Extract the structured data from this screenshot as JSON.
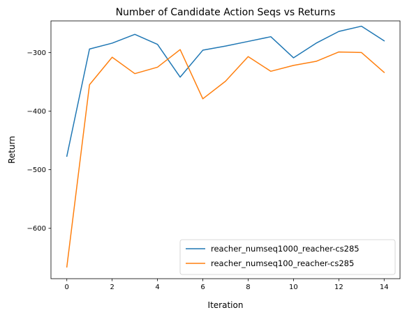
{
  "chart_data": {
    "type": "line",
    "title": "Number of Candidate Action Seqs vs Returns",
    "xlabel": "Iteration",
    "ylabel": "Return",
    "x": [
      0,
      1,
      2,
      3,
      4,
      5,
      6,
      7,
      8,
      9,
      10,
      11,
      12,
      13,
      14
    ],
    "xlim": [
      -0.7,
      14.7
    ],
    "ylim": [
      -686,
      -246
    ],
    "xticks": [
      0,
      2,
      4,
      6,
      8,
      10,
      12,
      14
    ],
    "yticks": [
      -600,
      -500,
      -400,
      -300
    ],
    "ytick_labels": [
      "−600",
      "−500",
      "−400",
      "−300"
    ],
    "legend_position": "lower right",
    "grid": false,
    "series": [
      {
        "name": "reacher_numseq1000_reacher-cs285",
        "color": "#1f77b4",
        "values": [
          -477,
          -294,
          -284,
          -269,
          -286,
          -342,
          -296,
          -289,
          -281,
          -273,
          -309,
          -284,
          -264,
          -255,
          -280
        ]
      },
      {
        "name": "reacher_numseq100_reacher-cs285",
        "color": "#ff7f0e",
        "values": [
          -666,
          -355,
          -308,
          -336,
          -325,
          -295,
          -379,
          -349,
          -307,
          -332,
          -322,
          -315,
          -299,
          -300,
          -334
        ]
      }
    ]
  }
}
